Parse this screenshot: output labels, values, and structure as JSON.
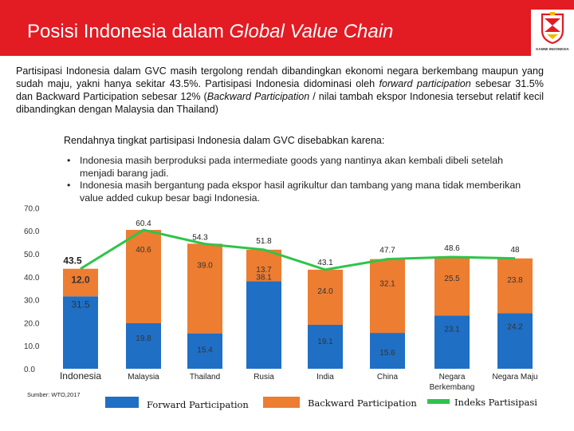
{
  "header": {
    "title_plain": "Posisi Indonesia dalam ",
    "title_italic": "Global Value Chain",
    "logo_text": "KAMMI INDONESIA"
  },
  "intro": {
    "s1": "Partisipasi Indonesia dalam GVC masih tergolong rendah dibandingkan ekonomi negara berkembang maupun yang sudah maju, yakni hanya sekitar 43.5%. Partisipasi Indonesia didominasi oleh ",
    "s2": "forward participation",
    "s3": " sebesar 31.5% dan Backward Participation sebesar 12% (",
    "s4": "Backward Participation",
    "s5": " / nilai tambah ekspor Indonesia tersebut relatif kecil dibandingkan dengan Malaysia dan Thailand)"
  },
  "subheading": "Rendahnya tingkat partisipasi Indonesia dalam GVC disebabkan karena:",
  "bullets": [
    "Indonesia masih berproduksi pada intermediate goods yang nantinya akan kembali dibeli setelah menjadi barang jadi.",
    "Indonesia masih bergantung pada ekspor hasil agrikultur dan tambang yang mana tidak memberikan value added cukup besar bagi Indonesia."
  ],
  "bullet_symbol": "•",
  "source": "Sumber: WTO,2017",
  "colors": {
    "header": "#e31b23",
    "forward": "#1f6fc5",
    "backward": "#ed7d31",
    "index": "#2ec44a"
  },
  "chart_data": {
    "type": "bar",
    "stacked": true,
    "categories": [
      "Indonesia",
      "Malaysia",
      "Thailand",
      "Rusia",
      "India",
      "China",
      "Negara Berkembang",
      "Negara Maju"
    ],
    "category_labels": [
      [
        "Indonesia"
      ],
      [
        "Malaysia"
      ],
      [
        "Thailand"
      ],
      [
        "Rusia"
      ],
      [
        "India"
      ],
      [
        "China"
      ],
      [
        "Negara",
        "Berkembang"
      ],
      [
        "Negara Maju"
      ]
    ],
    "series": [
      {
        "name": "Forward Participation",
        "type": "bar",
        "values": [
          31.5,
          19.8,
          15.4,
          38.1,
          19.1,
          15.6,
          23.1,
          24.2
        ],
        "labels": [
          "31.5",
          "19.8",
          "15.4",
          "38.1",
          "19.1",
          "15.6",
          "23.1",
          "24.2"
        ]
      },
      {
        "name": "Backward Participation",
        "type": "bar",
        "values": [
          12.0,
          40.6,
          39.0,
          13.7,
          24.0,
          32.1,
          25.5,
          23.8
        ],
        "labels": [
          "12.0",
          "40.6",
          "39.0",
          "13.7",
          "24.0",
          "32.1",
          "25.5",
          "23.8"
        ]
      },
      {
        "name": "Indeks Partisipasi",
        "type": "line",
        "values": [
          43.5,
          60.4,
          54.3,
          51.8,
          43.1,
          47.7,
          48.6,
          48
        ],
        "labels": [
          "43.5",
          "60.4",
          "54.3",
          "51.8",
          "43.1",
          "47.7",
          "48.6",
          "48"
        ]
      }
    ],
    "ylim": [
      0,
      70
    ],
    "yticks": [
      0,
      10,
      20,
      30,
      40,
      50,
      60,
      70
    ],
    "ytick_labels": [
      "0.0",
      "10.0",
      "20.0",
      "30.0",
      "40.0",
      "50.0",
      "60.0",
      "70.0"
    ],
    "legend": [
      "Forward Participation",
      "Backward Participation",
      "Indeks Partisipasi"
    ],
    "legend_position": "bottom"
  }
}
